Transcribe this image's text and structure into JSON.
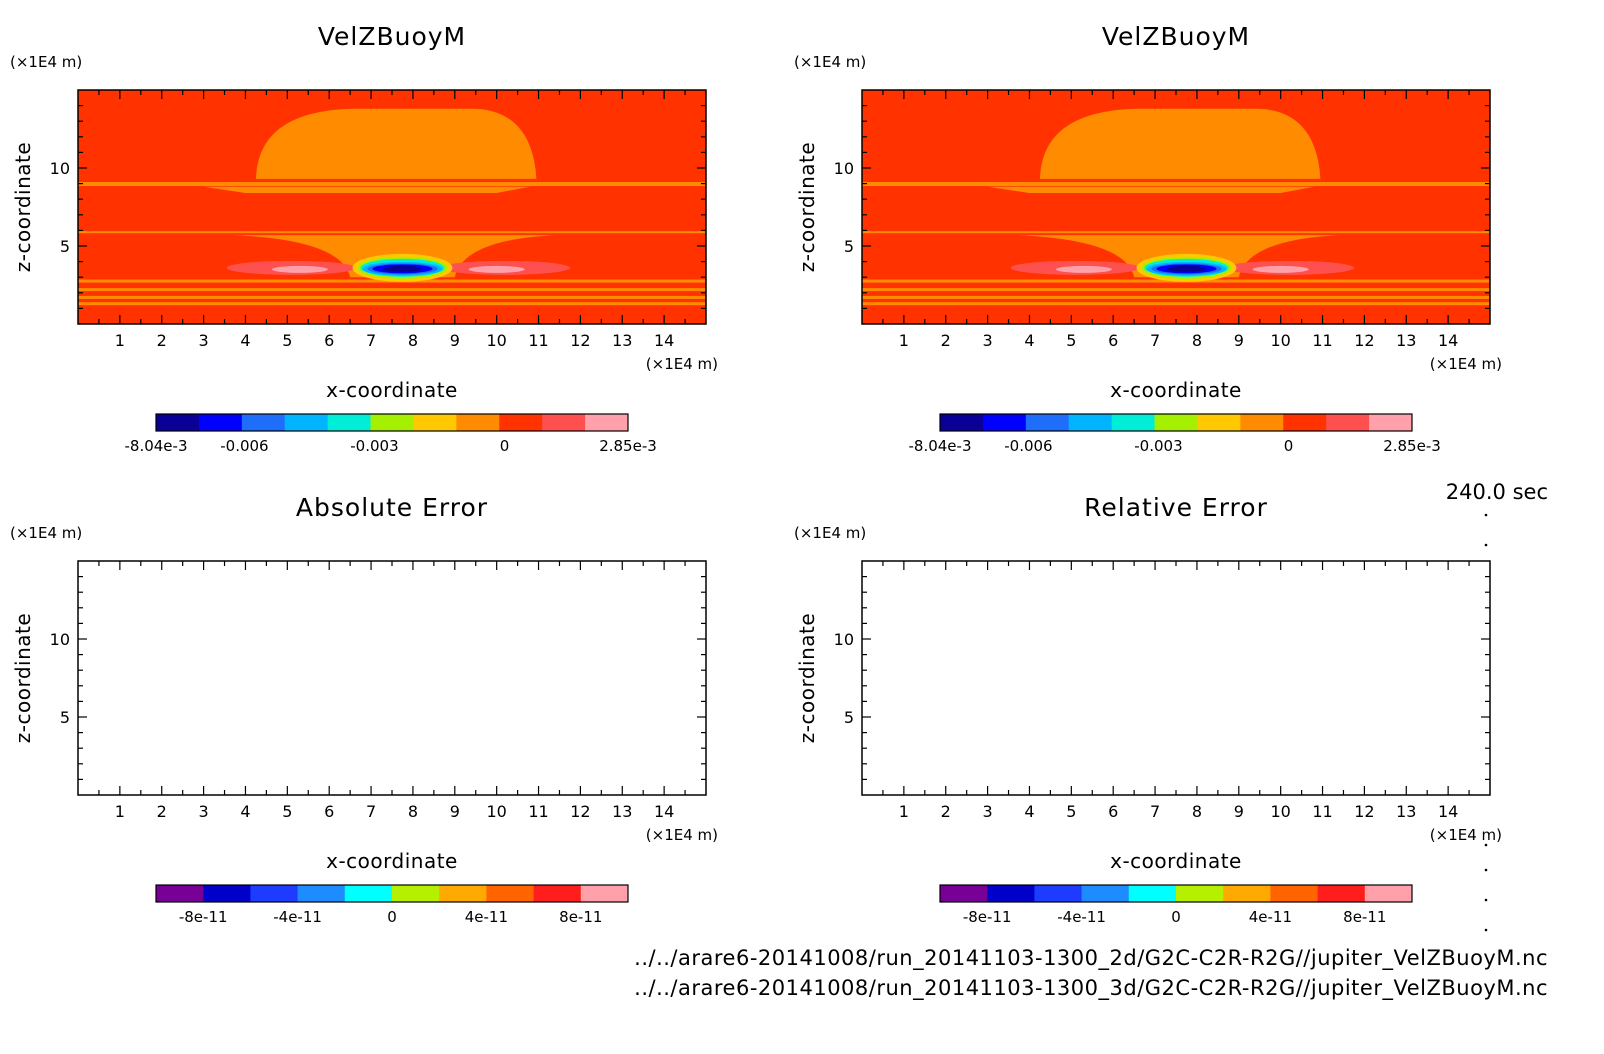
{
  "footer": {
    "time": "240.0 sec",
    "file1": "../../arare6-20141008/run_20141103-1300_2d/G2C-C2R-R2G//jupiter_VelZBuoyM.nc",
    "file2": "../../arare6-20141008/run_20141103-1300_3d/G2C-C2R-R2G//jupiter_VelZBuoyM.nc"
  },
  "chart_data": [
    {
      "type": "heatmap",
      "title": "VelZBuoyM",
      "xlabel": "x-coordinate",
      "ylabel": "z-coordinate",
      "x_unit": "(×1E4 m)",
      "y_unit": "(×1E4 m)",
      "xlim": [
        0,
        15
      ],
      "ylim": [
        0,
        15
      ],
      "x_ticks": [
        1,
        2,
        3,
        4,
        5,
        6,
        7,
        8,
        9,
        10,
        11,
        12,
        13,
        14
      ],
      "y_ticks": [
        5,
        10
      ],
      "colorbar": {
        "colors": [
          "#0a0096",
          "#0000ff",
          "#1e6efa",
          "#00b4ff",
          "#00eed7",
          "#a4f000",
          "#ffc800",
          "#ff8c00",
          "#ff3200",
          "#ff5050",
          "#ffa0aa"
        ],
        "labels": [
          "-8.04e-3",
          "-0.006",
          "-0.003",
          "0",
          "2.85e-3"
        ],
        "label_values": [
          -0.00804,
          -0.006,
          -0.003,
          0,
          0.00285
        ],
        "range": [
          -0.00804,
          0.00285
        ]
      },
      "filled": true
    },
    {
      "type": "heatmap",
      "title": "VelZBuoyM",
      "xlabel": "x-coordinate",
      "ylabel": "z-coordinate",
      "x_unit": "(×1E4 m)",
      "y_unit": "(×1E4 m)",
      "xlim": [
        0,
        15
      ],
      "ylim": [
        0,
        15
      ],
      "x_ticks": [
        1,
        2,
        3,
        4,
        5,
        6,
        7,
        8,
        9,
        10,
        11,
        12,
        13,
        14
      ],
      "y_ticks": [
        5,
        10
      ],
      "colorbar": {
        "colors": [
          "#0a0096",
          "#0000ff",
          "#1e6efa",
          "#00b4ff",
          "#00eed7",
          "#a4f000",
          "#ffc800",
          "#ff8c00",
          "#ff3200",
          "#ff5050",
          "#ffa0aa"
        ],
        "labels": [
          "-8.04e-3",
          "-0.006",
          "-0.003",
          "0",
          "2.85e-3"
        ],
        "label_values": [
          -0.00804,
          -0.006,
          -0.003,
          0,
          0.00285
        ],
        "range": [
          -0.00804,
          0.00285
        ]
      },
      "filled": true
    },
    {
      "type": "heatmap",
      "title": "Absolute Error",
      "xlabel": "x-coordinate",
      "ylabel": "z-coordinate",
      "x_unit": "(×1E4 m)",
      "y_unit": "(×1E4 m)",
      "xlim": [
        0,
        15
      ],
      "ylim": [
        0,
        15
      ],
      "x_ticks": [
        1,
        2,
        3,
        4,
        5,
        6,
        7,
        8,
        9,
        10,
        11,
        12,
        13,
        14
      ],
      "y_ticks": [
        5,
        10
      ],
      "colorbar": {
        "colors": [
          "#780096",
          "#0000c8",
          "#1e3cff",
          "#1e8cff",
          "#00ffff",
          "#b4f000",
          "#ffaa00",
          "#ff6400",
          "#ff1e1e",
          "#ffa0aa"
        ],
        "labels": [
          "-8e-11",
          "-4e-11",
          "0",
          "4e-11",
          "8e-11"
        ],
        "label_values": [
          -8e-11,
          -4e-11,
          0,
          4e-11,
          8e-11
        ],
        "range": [
          -1e-10,
          1e-10
        ]
      },
      "filled": false
    },
    {
      "type": "heatmap",
      "title": "Relative Error",
      "xlabel": "x-coordinate",
      "ylabel": "z-coordinate",
      "x_unit": "(×1E4 m)",
      "y_unit": "(×1E4 m)",
      "xlim": [
        0,
        15
      ],
      "ylim": [
        0,
        15
      ],
      "x_ticks": [
        1,
        2,
        3,
        4,
        5,
        6,
        7,
        8,
        9,
        10,
        11,
        12,
        13,
        14
      ],
      "y_ticks": [
        5,
        10
      ],
      "colorbar": {
        "colors": [
          "#780096",
          "#0000c8",
          "#1e3cff",
          "#1e8cff",
          "#00ffff",
          "#b4f000",
          "#ffaa00",
          "#ff6400",
          "#ff1e1e",
          "#ffa0aa"
        ],
        "labels": [
          "-8e-11",
          "-4e-11",
          "0",
          "4e-11",
          "8e-11"
        ],
        "label_values": [
          -8e-11,
          -4e-11,
          0,
          4e-11,
          8e-11
        ],
        "range": [
          -1e-10,
          1e-10
        ]
      },
      "filled": false
    }
  ]
}
